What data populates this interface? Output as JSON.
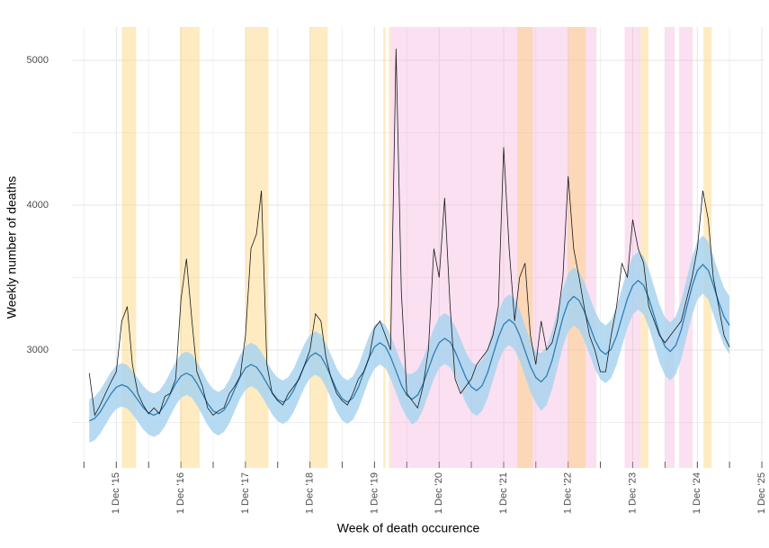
{
  "chart_data": {
    "type": "line",
    "y_label": "Weekly number of deaths",
    "x_label": "Week of death occurence",
    "x": [
      "2015-07-01",
      "2015-08-01",
      "2015-09-01",
      "2015-10-01",
      "2015-11-01",
      "2015-12-01",
      "2016-01-01",
      "2016-02-01",
      "2016-03-01",
      "2016-04-01",
      "2016-05-01",
      "2016-06-01",
      "2016-07-01",
      "2016-08-01",
      "2016-09-01",
      "2016-10-01",
      "2016-11-01",
      "2016-12-01",
      "2017-01-01",
      "2017-02-01",
      "2017-03-01",
      "2017-04-01",
      "2017-05-01",
      "2017-06-01",
      "2017-07-01",
      "2017-08-01",
      "2017-09-01",
      "2017-10-01",
      "2017-11-01",
      "2017-12-01",
      "2018-01-01",
      "2018-02-01",
      "2018-03-01",
      "2018-04-01",
      "2018-05-01",
      "2018-06-01",
      "2018-07-01",
      "2018-08-01",
      "2018-09-01",
      "2018-10-01",
      "2018-11-01",
      "2018-12-01",
      "2019-01-01",
      "2019-02-01",
      "2019-03-01",
      "2019-04-01",
      "2019-05-01",
      "2019-06-01",
      "2019-07-01",
      "2019-08-01",
      "2019-09-01",
      "2019-10-01",
      "2019-11-01",
      "2019-12-01",
      "2020-01-01",
      "2020-02-01",
      "2020-03-01",
      "2020-04-01",
      "2020-05-01",
      "2020-06-01",
      "2020-07-01",
      "2020-08-01",
      "2020-09-01",
      "2020-10-01",
      "2020-11-01",
      "2020-12-01",
      "2021-01-01",
      "2021-02-01",
      "2021-03-01",
      "2021-04-01",
      "2021-05-01",
      "2021-06-01",
      "2021-07-01",
      "2021-08-01",
      "2021-09-01",
      "2021-10-01",
      "2021-11-01",
      "2021-12-01",
      "2022-01-01",
      "2022-02-01",
      "2022-03-01",
      "2022-04-01",
      "2022-05-01",
      "2022-06-01",
      "2022-07-01",
      "2022-08-01",
      "2022-09-01",
      "2022-10-01",
      "2022-11-01",
      "2022-12-01",
      "2023-01-01",
      "2023-02-01",
      "2023-03-01",
      "2023-04-01",
      "2023-05-01",
      "2023-06-01",
      "2023-07-01",
      "2023-08-01",
      "2023-09-01",
      "2023-10-01",
      "2023-11-01",
      "2023-12-01",
      "2024-01-01",
      "2024-02-01",
      "2024-03-01",
      "2024-04-01",
      "2024-05-01",
      "2024-06-01",
      "2024-07-01",
      "2024-08-01",
      "2024-09-01",
      "2024-10-01",
      "2024-11-01",
      "2024-12-01",
      "2025-01-01",
      "2025-02-01",
      "2025-03-01",
      "2025-04-01",
      "2025-05-01",
      "2025-06-01"
    ],
    "series": [
      {
        "color": "#1a1a1a",
        "values": [
          2840,
          2550,
          2620,
          2700,
          2780,
          2850,
          3200,
          3300,
          2900,
          2700,
          2620,
          2560,
          2600,
          2560,
          2680,
          2700,
          2800,
          3350,
          3630,
          3200,
          2850,
          2750,
          2600,
          2550,
          2580,
          2600,
          2700,
          2750,
          2820,
          3100,
          3700,
          3800,
          4100,
          2900,
          2700,
          2650,
          2620,
          2700,
          2750,
          2800,
          2900,
          3000,
          3250,
          3200,
          2950,
          2800,
          2700,
          2650,
          2620,
          2700,
          2800,
          2850,
          2950,
          3150,
          3200,
          3100,
          3000,
          5080,
          3400,
          2700,
          2650,
          2600,
          2750,
          3000,
          3700,
          3500,
          4050,
          3300,
          2800,
          2700,
          2750,
          2800,
          2900,
          2950,
          3000,
          3100,
          3300,
          4400,
          3700,
          3200,
          3500,
          3600,
          3100,
          2900,
          3200,
          3000,
          3050,
          3200,
          3500,
          4200,
          3700,
          3500,
          3300,
          3100,
          3000,
          2850,
          2850,
          3100,
          3300,
          3600,
          3500,
          3900,
          3700,
          3600,
          3300,
          3200,
          3100,
          3050,
          3100,
          3150,
          3200,
          3350,
          3500,
          3700,
          4100,
          3900,
          3500,
          3300,
          3100,
          3020
        ]
      },
      {
        "color": "#2c7fb8",
        "band_color": "#a9d3ef",
        "values": [
          2510,
          2528,
          2573,
          2635,
          2698,
          2743,
          2760,
          2746,
          2708,
          2655,
          2603,
          2565,
          2550,
          2570,
          2623,
          2695,
          2768,
          2820,
          2840,
          2821,
          2770,
          2700,
          2630,
          2580,
          2560,
          2584,
          2645,
          2730,
          2815,
          2876,
          2900,
          2882,
          2835,
          2770,
          2705,
          2658,
          2640,
          2664,
          2725,
          2810,
          2895,
          2956,
          2980,
          2956,
          2895,
          2810,
          2725,
          2664,
          2640,
          2669,
          2743,
          2845,
          2948,
          3021,
          3050,
          3023,
          2953,
          2855,
          2758,
          2687,
          2660,
          2689,
          2765,
          2870,
          2975,
          3051,
          3080,
          3055,
          2990,
          2900,
          2810,
          2745,
          2720,
          2754,
          2843,
          2965,
          3088,
          3176,
          3210,
          3179,
          3103,
          2995,
          2888,
          2810,
          2780,
          2821,
          2928,
          3075,
          3223,
          3329,
          3370,
          3342,
          3270,
          3170,
          3070,
          2998,
          2970,
          3006,
          3098,
          3225,
          3353,
          3444,
          3480,
          3446,
          3358,
          3235,
          3113,
          3024,
          2990,
          3032,
          3140,
          3290,
          3440,
          3548,
          3590,
          3550,
          3450,
          3330,
          3230,
          3170
        ],
        "errors": [
          150,
          150,
          150,
          150,
          150,
          150,
          150,
          150,
          150,
          150,
          150,
          150,
          150,
          150,
          150,
          150,
          150,
          150,
          150,
          150,
          150,
          150,
          150,
          150,
          150,
          150,
          150,
          150,
          150,
          150,
          150,
          150,
          150,
          150,
          150,
          150,
          150,
          150,
          150,
          150,
          150,
          150,
          150,
          150,
          150,
          150,
          150,
          150,
          150,
          150,
          150,
          150,
          150,
          150,
          150,
          150,
          150,
          150,
          150,
          150,
          175,
          175,
          175,
          175,
          175,
          175,
          175,
          175,
          175,
          175,
          175,
          175,
          175,
          175,
          175,
          175,
          175,
          175,
          175,
          175,
          175,
          175,
          175,
          175,
          200,
          200,
          200,
          200,
          200,
          200,
          200,
          200,
          200,
          200,
          200,
          200,
          200,
          200,
          200,
          200,
          200,
          200,
          200,
          200,
          200,
          200,
          200,
          200,
          200,
          200,
          200,
          200,
          200,
          200,
          200,
          200,
          200,
          200,
          200,
          200
        ]
      }
    ],
    "periods": [
      {
        "start": "2020-03-01",
        "end": "2023-05-10",
        "color": "rgba(240,160,210,0.32)"
      },
      {
        "start": "2023-10-17",
        "end": "2024-01-15",
        "color": "rgba(240,160,210,0.32)"
      },
      {
        "start": "2024-06-01",
        "end": "2024-07-26",
        "color": "rgba(240,160,210,0.32)"
      },
      {
        "start": "2024-08-20",
        "end": "2024-11-05",
        "color": "rgba(240,160,210,0.32)"
      },
      {
        "start": "2016-01-01",
        "end": "2016-03-22",
        "color": "rgba(255,205,100,0.4)"
      },
      {
        "start": "2016-11-25",
        "end": "2017-03-17",
        "color": "rgba(255,205,100,0.4)"
      },
      {
        "start": "2017-12-01",
        "end": "2018-04-10",
        "color": "rgba(255,205,100,0.4)"
      },
      {
        "start": "2018-12-01",
        "end": "2019-03-12",
        "color": "rgba(255,205,100,0.4)"
      },
      {
        "start": "2020-01-20",
        "end": "2020-02-01",
        "color": "rgba(255,205,100,0.4)"
      },
      {
        "start": "2020-02-20",
        "end": "2020-03-01",
        "color": "rgba(255,205,100,0.4)"
      },
      {
        "start": "2022-02-16",
        "end": "2022-05-15",
        "color": "rgba(255,205,100,0.4)"
      },
      {
        "start": "2022-12-01",
        "end": "2023-03-10",
        "color": "rgba(255,205,100,0.4)"
      },
      {
        "start": "2024-01-15",
        "end": "2024-02-28",
        "color": "rgba(255,205,100,0.4)"
      },
      {
        "start": "2025-01-05",
        "end": "2025-02-20",
        "color": "rgba(255,205,100,0.4)"
      }
    ],
    "xlim": [
      "2015-03-25",
      "2025-12-16"
    ],
    "xticks": [
      {
        "value": "2015-12-01",
        "label": "1 Dec '15"
      },
      {
        "value": "2016-12-01",
        "label": "1 Dec '16"
      },
      {
        "value": "2017-12-01",
        "label": "1 Dec '17"
      },
      {
        "value": "2018-12-01",
        "label": "1 Dec '18"
      },
      {
        "value": "2019-12-01",
        "label": "1 Dec '19"
      },
      {
        "value": "2020-12-01",
        "label": "1 Dec '20"
      },
      {
        "value": "2021-12-01",
        "label": "1 Dec '21"
      },
      {
        "value": "2022-12-01",
        "label": "1 Dec '22"
      },
      {
        "value": "2023-12-01",
        "label": "1 Dec '23"
      },
      {
        "value": "2024-12-01",
        "label": "1 Dec '24"
      },
      {
        "value": "2025-12-01",
        "label": "1 Dec '25"
      }
    ],
    "minor_xticks": [
      "2015-06-01",
      "2016-06-01",
      "2017-06-01",
      "2018-06-01",
      "2019-06-01",
      "2020-06-01",
      "2021-06-01",
      "2022-06-01",
      "2023-06-01",
      "2024-06-01",
      "2025-06-01"
    ],
    "ylim": [
      2186,
      5230
    ],
    "yticks": [
      3000,
      4000,
      5000
    ],
    "minor_yticks": [
      2500,
      3500,
      4500
    ],
    "grid": true
  }
}
